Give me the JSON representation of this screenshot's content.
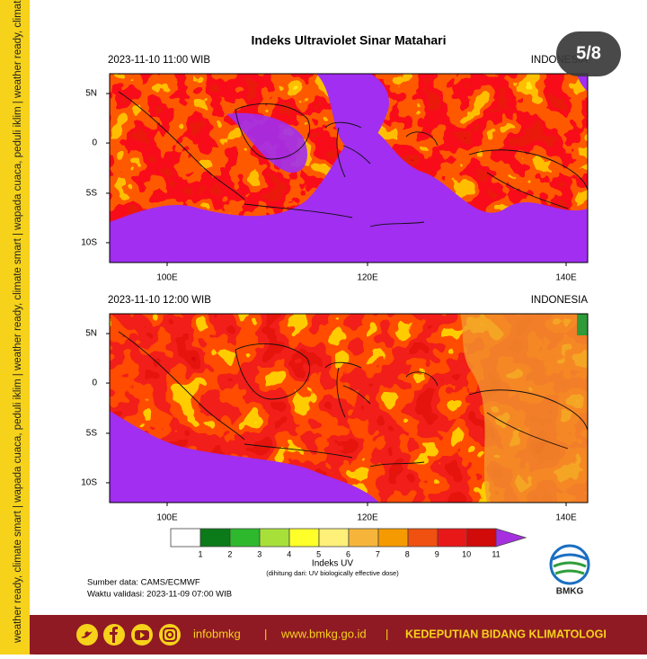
{
  "sidebar": {
    "text": "weather ready, climate smart | wapada cuaca, peduli iklim | weather ready, climate smart | wapada cuaca, peduli iklim | weather ready, climate smart | wapada cuaca, peduli iklim"
  },
  "badge": "5/8",
  "title": "Indeks Ultraviolet Sinar Matahari",
  "panels": [
    {
      "time": "2023-11-10 11:00 WIB",
      "region": "INDONESIA",
      "lat_labels": [
        "5N",
        "0",
        "5S",
        "10S"
      ],
      "lon_labels": [
        "100E",
        "120E",
        "140E"
      ]
    },
    {
      "time": "2023-11-10 12:00 WIB",
      "region": "INDONESIA",
      "lat_labels": [
        "5N",
        "0",
        "5S",
        "10S"
      ],
      "lon_labels": [
        "100E",
        "120E",
        "140E"
      ]
    }
  ],
  "colorbar": {
    "labels": [
      1,
      2,
      3,
      4,
      5,
      6,
      7,
      8,
      9,
      10,
      11
    ],
    "title": "Indeks UV",
    "note": "(dihitung dari: UV biologically effective dose)"
  },
  "source": "Sumber data: CAMS/ECMWF",
  "validity": "Waktu validasi: 2023-11-09 07:00 WIB",
  "logo": "BMKG",
  "footer": {
    "handle": "infobmkg",
    "separator": "|",
    "website": "www.bmkg.go.id",
    "department": "KEDEPUTIAN BIDANG KLIMATOLOGI"
  }
}
